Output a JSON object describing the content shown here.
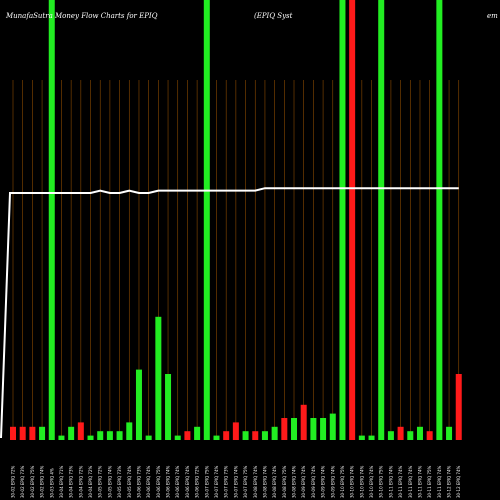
{
  "header": {
    "title": "MunafaSutra  Money Flow  Charts for EPIQ",
    "company": "(EPIQ Syst",
    "site": "em"
  },
  "colors": {
    "background": "#000000",
    "up": "#22ee22",
    "down": "#ff1a1a",
    "grid": "#8a4a00",
    "price_line": "#ffffff"
  },
  "chart_data": {
    "type": "bar",
    "title": "MunafaSutra  Money Flow  Charts for EPIQ",
    "categories": [
      "30-02 EPIQ 72%",
      "30-02 EPIQ 73%",
      "30-02 EPIQ 75%",
      "30-02 EPIQ 74%",
      "30-03 EPIQ 4%",
      "30-04 EPIQ 71%",
      "30-04 EPIQ 73%",
      "30-04 EPIQ 72%",
      "30-04 EPIQ 72%",
      "30-05 EPIQ 72%",
      "30-05 EPIQ 74%",
      "30-05 EPIQ 73%",
      "30-05 EPIQ 74%",
      "30-06 EPIQ 73%",
      "30-06 EPIQ 74%",
      "30-06 EPIQ 75%",
      "30-06 EPIQ 74%",
      "30-06 EPIQ 74%",
      "30-06 EPIQ 74%",
      "30-06 EPIQ 72%",
      "30-07 EPIQ 75%",
      "30-07 EPIQ 74%",
      "30-07 EPIQ 73%",
      "30-07 EPIQ 74%",
      "30-07 EPIQ 75%",
      "30-08 EPIQ 74%",
      "30-08 EPIQ 74%",
      "30-08 EPIQ 74%",
      "30-08 EPIQ 75%",
      "30-08 EPIQ 74%",
      "30-09 EPIQ 74%",
      "30-09 EPIQ 74%",
      "30-09 EPIQ 74%",
      "30-09 EPIQ 74%",
      "30-10 EPIQ 75%",
      "30-10 EPIQ 74%",
      "30-10 EPIQ 74%",
      "30-10 EPIQ 74%",
      "30-10 EPIQ 75%",
      "30-11 EPIQ 74%",
      "30-11 EPIQ 74%",
      "30-11 EPIQ 74%",
      "30-11 EPIQ 74%",
      "30-11 EPIQ 75%",
      "30-11 EPIQ 74%",
      "30-12 EPIQ 74%",
      "30-12 EPIQ 74%"
    ],
    "values": [
      3,
      3,
      3,
      3,
      3,
      1,
      3,
      4,
      1,
      2,
      2,
      2,
      4,
      16,
      1,
      28,
      15,
      1,
      2,
      3,
      50,
      1,
      2,
      4,
      2,
      2,
      2,
      3,
      5,
      5,
      8,
      5,
      5,
      6,
      2,
      2,
      1,
      1,
      2,
      2,
      3,
      2,
      3,
      2,
      2,
      3,
      15
    ],
    "colors": [
      "down",
      "down",
      "down",
      "up",
      "up",
      "up",
      "up",
      "down",
      "up",
      "up",
      "up",
      "up",
      "up",
      "up",
      "up",
      "up",
      "up",
      "up",
      "down",
      "up",
      "up",
      "up",
      "down",
      "down",
      "up",
      "down",
      "up",
      "up",
      "down",
      "up",
      "down",
      "up",
      "up",
      "up",
      "up",
      "down",
      "up",
      "up",
      "up",
      "up",
      "down",
      "up",
      "up",
      "down",
      "up",
      "up",
      "down"
    ],
    "overflow": [
      4,
      20,
      34,
      35,
      38,
      44
    ],
    "price_line": [
      45,
      97,
      97,
      97,
      97,
      97,
      97,
      97,
      97,
      98,
      97,
      97,
      98,
      97,
      97,
      98,
      98,
      98,
      98,
      98,
      98,
      98,
      98,
      98,
      98,
      98,
      99,
      99,
      99,
      99,
      99,
      99,
      99,
      99,
      99,
      99,
      99,
      99,
      99,
      99,
      99,
      99,
      99,
      99,
      99,
      99,
      99
    ],
    "ylim": [
      0,
      100
    ],
    "xlabel": "",
    "ylabel": "",
    "grid": true
  }
}
